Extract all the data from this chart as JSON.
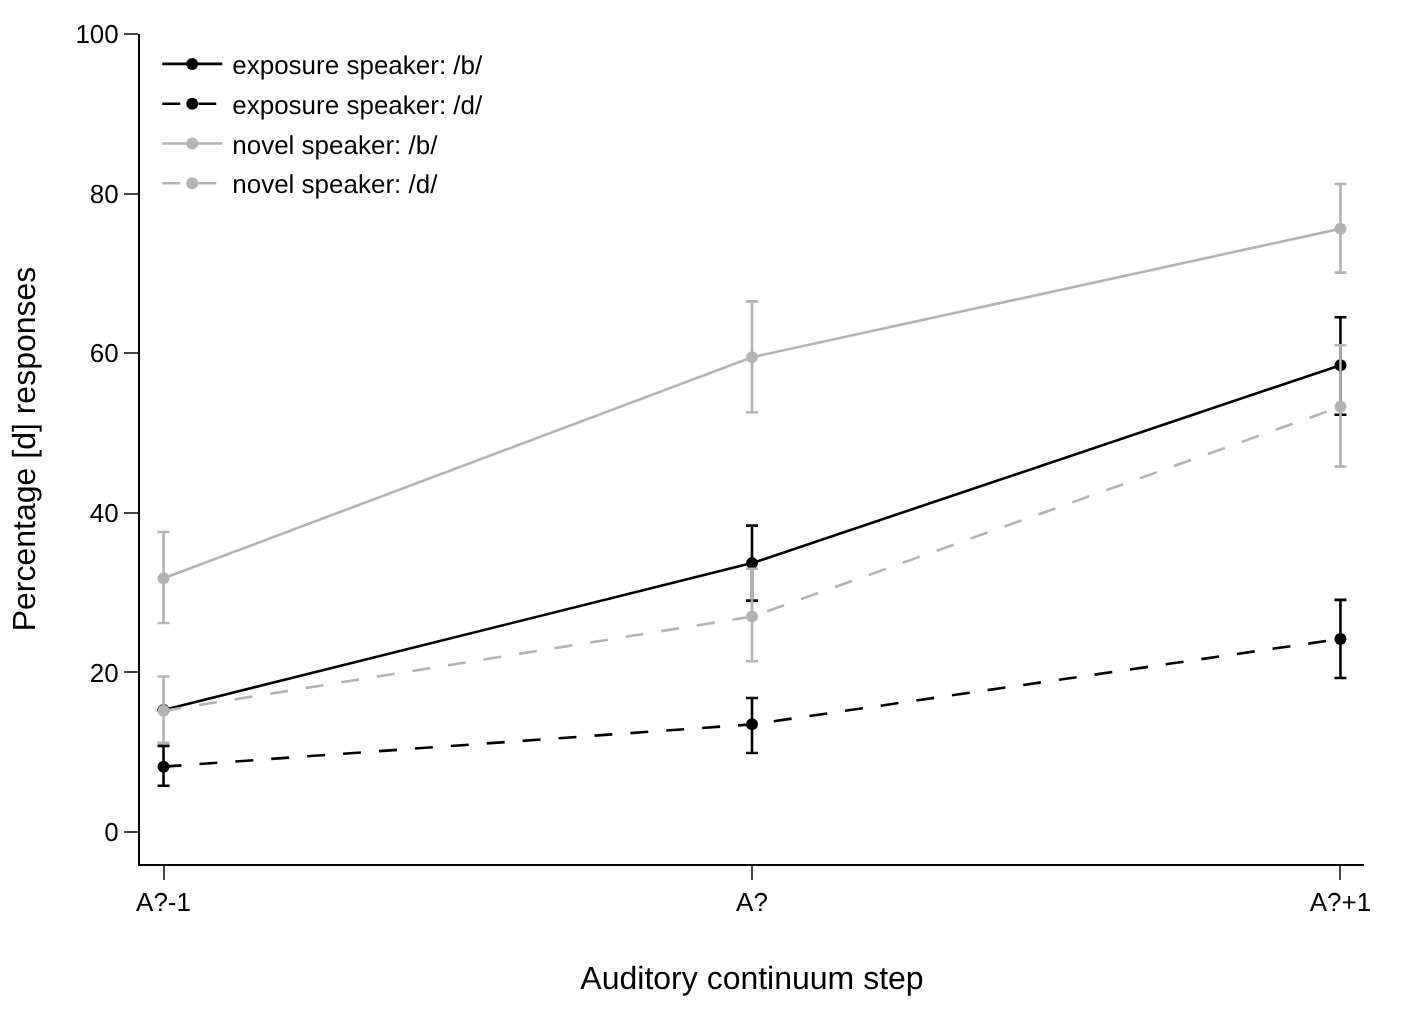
{
  "chart_data": {
    "type": "line",
    "xlabel": "Auditory continuum step",
    "ylabel": "Percentage [d] responses",
    "categories": [
      "A?-1",
      "A?",
      "A?+1"
    ],
    "series": [
      {
        "name": "exposure speaker: /b/",
        "color": "#000000",
        "line_style": "solid",
        "values": [
          15.3,
          33.7,
          58.5
        ],
        "errors": [
          null,
          [
            29,
            38.4
          ],
          [
            52.3,
            64.5
          ]
        ]
      },
      {
        "name": "exposure speaker: /d/",
        "color": "#000000",
        "line_style": "dashed",
        "values": [
          8.2,
          13.5,
          24.2
        ],
        "errors": [
          [
            5.8,
            10.8
          ],
          [
            9.9,
            16.8
          ],
          [
            19.3,
            29.1
          ]
        ]
      },
      {
        "name": "novel speaker: /b/",
        "color": "#b3b3b3",
        "line_style": "solid",
        "values": [
          31.8,
          59.5,
          75.6
        ],
        "errors": [
          [
            26.2,
            37.6
          ],
          [
            52.6,
            66.5
          ],
          [
            70.1,
            81.2
          ]
        ]
      },
      {
        "name": "novel speaker: /d/",
        "color": "#b3b3b3",
        "line_style": "dashed",
        "values": [
          15.2,
          27,
          53.3
        ],
        "errors": [
          [
            11.2,
            19.5
          ],
          [
            21.4,
            33
          ],
          [
            45.8,
            61
          ]
        ]
      }
    ],
    "ylim": [
      -4,
      100
    ],
    "yticks": [
      0,
      20,
      40,
      60,
      80,
      100
    ],
    "legend": "top left",
    "marker": "circle"
  }
}
